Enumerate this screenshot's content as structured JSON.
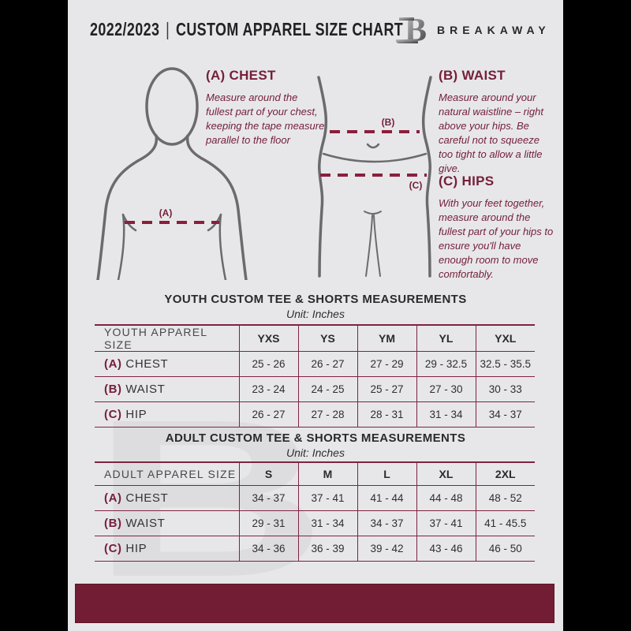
{
  "header": {
    "season": "2022/2023",
    "separator": "|",
    "title": "CUSTOM APPAREL SIZE CHART",
    "brand": "BREAKAWAY",
    "logo_letter": "B"
  },
  "colors": {
    "accent": "#75203A",
    "dash_line": "#8A1F3C",
    "table_line": "#7E2440",
    "footer_bar": "#731D35",
    "background": "#E7E7E9",
    "figure_outline": "#6B6B6E",
    "watermark": "#DDDDE0"
  },
  "measurements": {
    "chest": {
      "heading": "(A) CHEST",
      "marker": "(A)",
      "description": "Measure around the fullest part of your chest, keeping the tape measure parallel to the floor"
    },
    "waist": {
      "heading": "(B) WAIST",
      "marker": "(B)",
      "description": "Measure around your natural waistline – right above your hips. Be careful not to squeeze too tight to allow a little give."
    },
    "hips": {
      "heading": "(C) HIPS",
      "marker": "(C)",
      "description": "With your feet together, measure around the fullest part of your hips to ensure you'll have enough room to move comfortably."
    }
  },
  "youth_table": {
    "title": "YOUTH CUSTOM TEE & SHORTS MEASUREMENTS",
    "unit": "Unit: Inches",
    "header": [
      "YOUTH APPAREL SIZE",
      "YXS",
      "YS",
      "YM",
      "YL",
      "YXL"
    ],
    "rows": [
      {
        "prefix": "(A)",
        "label": "CHEST",
        "values": [
          "25 - 26",
          "26 - 27",
          "27 - 29",
          "29 - 32.5",
          "32.5 - 35.5"
        ]
      },
      {
        "prefix": "(B)",
        "label": "WAIST",
        "values": [
          "23 - 24",
          "24 - 25",
          "25 - 27",
          "27 - 30",
          "30 - 33"
        ]
      },
      {
        "prefix": "(C)",
        "label": "HIP",
        "values": [
          "26 - 27",
          "27 - 28",
          "28 - 31",
          "31 - 34",
          "34 - 37"
        ]
      }
    ]
  },
  "adult_table": {
    "title": "ADULT CUSTOM TEE & SHORTS MEASUREMENTS",
    "unit": "Unit: Inches",
    "header": [
      "ADULT APPAREL SIZE",
      "S",
      "M",
      "L",
      "XL",
      "2XL"
    ],
    "rows": [
      {
        "prefix": "(A)",
        "label": "CHEST",
        "values": [
          "34 - 37",
          "37 - 41",
          "41 - 44",
          "44 - 48",
          "48 - 52"
        ]
      },
      {
        "prefix": "(B)",
        "label": "WAIST",
        "values": [
          "29 - 31",
          "31 - 34",
          "34 - 37",
          "37 - 41",
          "41 - 45.5"
        ]
      },
      {
        "prefix": "(C)",
        "label": "HIP",
        "values": [
          "34 - 36",
          "36 - 39",
          "39 - 42",
          "43 - 46",
          "46 - 50"
        ]
      }
    ]
  },
  "watermark_letter": "B"
}
